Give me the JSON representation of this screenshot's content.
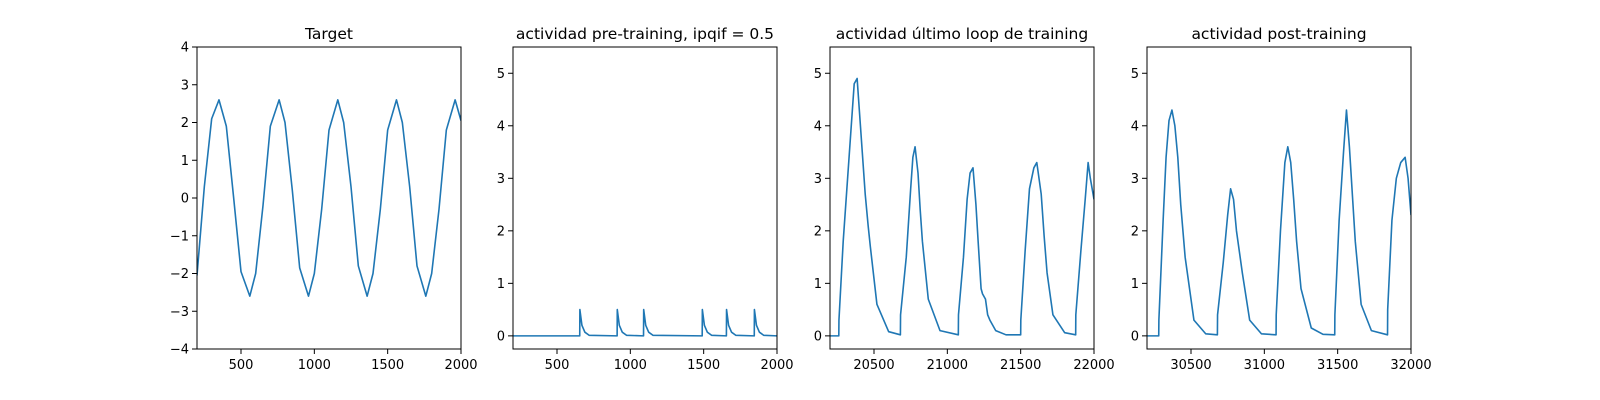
{
  "figure": {
    "background": "#ffffff",
    "line_color": "#1f77b4"
  },
  "chart_data": [
    {
      "type": "line",
      "title": "Target",
      "xlabel": "",
      "ylabel": "",
      "xlim": [
        200,
        2000
      ],
      "ylim": [
        -4,
        4
      ],
      "xticks": [
        500,
        1000,
        1500,
        2000
      ],
      "yticks": [
        -4,
        -3,
        -2,
        -1,
        0,
        1,
        2,
        3,
        4
      ],
      "grid": false,
      "series": [
        {
          "color": "#1f77b4",
          "x": [
            200,
            250,
            300,
            350,
            400,
            450,
            500,
            560,
            600,
            650,
            700,
            760,
            800,
            850,
            900,
            960,
            1000,
            1050,
            1100,
            1160,
            1200,
            1250,
            1300,
            1360,
            1400,
            1450,
            1500,
            1560,
            1600,
            1650,
            1700,
            1760,
            1800,
            1850,
            1900,
            1960,
            2000
          ],
          "values": [
            -2.05,
            0.3,
            2.1,
            2.6,
            1.9,
            0.0,
            -1.95,
            -2.6,
            -2.0,
            -0.2,
            1.9,
            2.6,
            2.0,
            0.2,
            -1.85,
            -2.6,
            -2.0,
            -0.3,
            1.8,
            2.6,
            2.0,
            0.3,
            -1.8,
            -2.6,
            -2.0,
            -0.3,
            1.8,
            2.6,
            2.0,
            0.3,
            -1.8,
            -2.6,
            -2.0,
            -0.3,
            1.8,
            2.6,
            2.05
          ]
        }
      ]
    },
    {
      "type": "line",
      "title": "actividad pre-training, ipqif = 0.5",
      "xlabel": "",
      "ylabel": "",
      "xlim": [
        200,
        2000
      ],
      "ylim": [
        -0.25,
        5.5
      ],
      "xticks": [
        500,
        1000,
        1500,
        2000
      ],
      "yticks": [
        0,
        1,
        2,
        3,
        4,
        5
      ],
      "grid": false,
      "series": [
        {
          "color": "#1f77b4",
          "x": [
            200,
            655,
            656,
            670,
            690,
            720,
            910,
            911,
            925,
            945,
            975,
            1090,
            1091,
            1105,
            1125,
            1155,
            1490,
            1491,
            1505,
            1525,
            1555,
            1655,
            1656,
            1670,
            1690,
            1720,
            1845,
            1846,
            1860,
            1880,
            1910,
            2000
          ],
          "values": [
            0,
            0,
            0.5,
            0.2,
            0.07,
            0.01,
            0,
            0.5,
            0.2,
            0.07,
            0.01,
            0,
            0.5,
            0.2,
            0.07,
            0.01,
            0,
            0.5,
            0.2,
            0.07,
            0.01,
            0,
            0.5,
            0.2,
            0.07,
            0.01,
            0,
            0.5,
            0.2,
            0.07,
            0.01,
            0
          ]
        }
      ]
    },
    {
      "type": "line",
      "title": "actividad último loop de training",
      "xlabel": "",
      "ylabel": "",
      "xlim": [
        20200,
        22000
      ],
      "ylim": [
        -0.25,
        5.5
      ],
      "xticks": [
        20500,
        21000,
        21500,
        22000
      ],
      "yticks": [
        0,
        1,
        2,
        3,
        4,
        5
      ],
      "grid": false,
      "series": [
        {
          "color": "#1f77b4",
          "x": [
            20200,
            20260,
            20261,
            20290,
            20320,
            20350,
            20365,
            20385,
            20400,
            20420,
            20440,
            20460,
            20475,
            20520,
            20600,
            20680,
            20681,
            20720,
            20750,
            20765,
            20780,
            20800,
            20815,
            20830,
            20870,
            20950,
            21075,
            21076,
            21110,
            21135,
            21155,
            21175,
            21195,
            21210,
            21230,
            21240,
            21260,
            21275,
            21290,
            21330,
            21400,
            21500,
            21501,
            21530,
            21560,
            21590,
            21610,
            21640,
            21660,
            21680,
            21720,
            21800,
            21875,
            21876,
            21910,
            21940,
            21960,
            21975,
            22000
          ],
          "values": [
            0,
            0,
            0.3,
            1.8,
            3.0,
            4.2,
            4.8,
            4.9,
            4.3,
            3.5,
            2.7,
            2.1,
            1.7,
            0.6,
            0.08,
            0.02,
            0.4,
            1.5,
            2.8,
            3.4,
            3.6,
            3.1,
            2.4,
            1.8,
            0.7,
            0.1,
            0.02,
            0.4,
            1.5,
            2.6,
            3.1,
            3.2,
            2.5,
            1.8,
            0.9,
            0.8,
            0.7,
            0.4,
            0.3,
            0.1,
            0.02,
            0.02,
            0.3,
            1.6,
            2.8,
            3.2,
            3.3,
            2.7,
            1.9,
            1.2,
            0.4,
            0.06,
            0.02,
            0.4,
            1.6,
            2.6,
            3.3,
            3.0,
            2.6
          ]
        }
      ]
    },
    {
      "type": "line",
      "title": "actividad post-training",
      "xlabel": "",
      "ylabel": "",
      "xlim": [
        30200,
        32000
      ],
      "ylim": [
        -0.25,
        5.5
      ],
      "xticks": [
        30500,
        31000,
        31500,
        32000
      ],
      "yticks": [
        0,
        1,
        2,
        3,
        4,
        5
      ],
      "grid": false,
      "series": [
        {
          "color": "#1f77b4",
          "x": [
            30200,
            30280,
            30281,
            30310,
            30330,
            30350,
            30370,
            30390,
            30410,
            30430,
            30460,
            30520,
            30600,
            30680,
            30681,
            30720,
            30750,
            30770,
            30790,
            30810,
            30830,
            30850,
            30900,
            30980,
            31080,
            31081,
            31110,
            31140,
            31160,
            31180,
            31200,
            31220,
            31250,
            31320,
            31400,
            31480,
            31481,
            31510,
            31540,
            31560,
            31580,
            31600,
            31620,
            31660,
            31730,
            31840,
            31841,
            31870,
            31900,
            31930,
            31960,
            31980,
            32000
          ],
          "values": [
            0,
            0,
            0.3,
            2.2,
            3.4,
            4.1,
            4.3,
            4.0,
            3.4,
            2.5,
            1.5,
            0.3,
            0.04,
            0.02,
            0.4,
            1.4,
            2.3,
            2.8,
            2.6,
            2.0,
            1.6,
            1.2,
            0.3,
            0.04,
            0.02,
            0.4,
            2.0,
            3.3,
            3.6,
            3.3,
            2.6,
            1.8,
            0.9,
            0.15,
            0.03,
            0.02,
            0.4,
            2.2,
            3.5,
            4.3,
            3.6,
            2.7,
            1.8,
            0.6,
            0.1,
            0.02,
            0.5,
            2.2,
            3.0,
            3.3,
            3.4,
            3.0,
            2.3
          ]
        }
      ]
    }
  ]
}
